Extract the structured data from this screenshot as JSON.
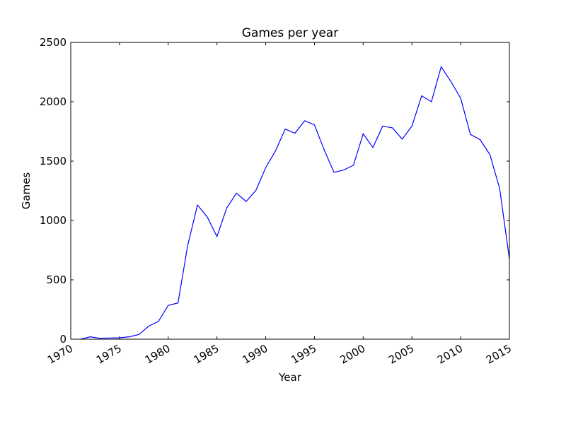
{
  "chart_data": {
    "type": "line",
    "title": "Games per year",
    "xlabel": "Year",
    "ylabel": "Games",
    "xlim": [
      1970,
      2015
    ],
    "ylim": [
      0,
      2500
    ],
    "xticks": [
      "1970",
      "1975",
      "1980",
      "1985",
      "1990",
      "1995",
      "2000",
      "2005",
      "2010",
      "2015"
    ],
    "yticks": [
      "0",
      "500",
      "1000",
      "1500",
      "2000",
      "2500"
    ],
    "grid": false,
    "series": [
      {
        "color": "#0000ff",
        "x": [
          1971,
          1972,
          1973,
          1974,
          1975,
          1976,
          1977,
          1978,
          1979,
          1980,
          1981,
          1982,
          1983,
          1984,
          1985,
          1986,
          1987,
          1988,
          1989,
          1990,
          1991,
          1992,
          1993,
          1994,
          1995,
          1996,
          1997,
          1998,
          1999,
          2000,
          2001,
          2002,
          2003,
          2004,
          2005,
          2006,
          2007,
          2008,
          2009,
          2010,
          2011,
          2012,
          2013,
          2014,
          2015
        ],
        "y": [
          0,
          20,
          8,
          10,
          12,
          20,
          40,
          110,
          150,
          285,
          305,
          790,
          1130,
          1030,
          865,
          1105,
          1230,
          1160,
          1255,
          1445,
          1585,
          1770,
          1735,
          1840,
          1805,
          1595,
          1405,
          1425,
          1465,
          1730,
          1615,
          1795,
          1780,
          1685,
          1795,
          2050,
          2000,
          2295,
          2170,
          2030,
          1725,
          1680,
          1555,
          1270,
          675
        ]
      }
    ]
  }
}
